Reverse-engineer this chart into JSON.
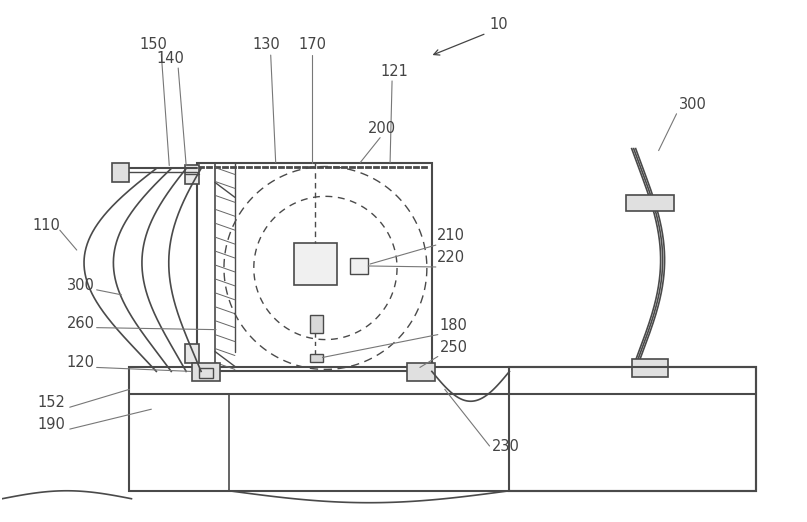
{
  "bg_color": "#ffffff",
  "line_color": "#4a4a4a",
  "fig_width": 8.07,
  "fig_height": 5.22,
  "dpi": 100
}
